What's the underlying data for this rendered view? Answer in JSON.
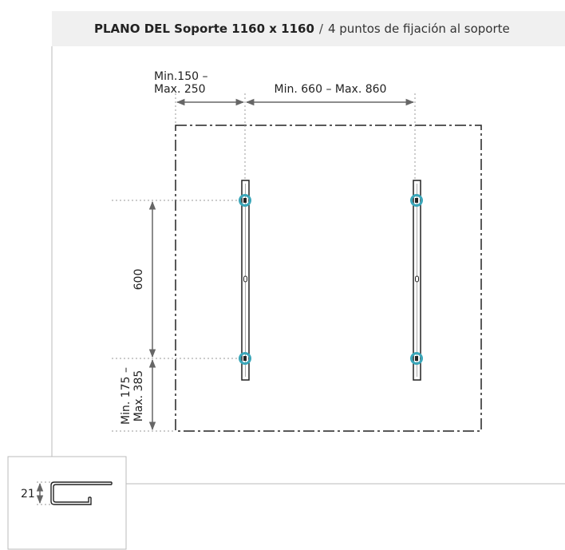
{
  "header": {
    "title_bold": "PLANO DEL Soporte 1160 x 1160",
    "separator": "/",
    "title_sub": "4 puntos de fijación al soporte"
  },
  "dimensions": {
    "left_margin_line1": "Min.150 –",
    "left_margin_line2": "Max. 250",
    "rail_spacing": "Min. 660 – Max. 860",
    "vertical_spacing": "600",
    "bottom_margin_line1": "Min. 175 –",
    "bottom_margin_line2": "Max. 385",
    "profile_height": "21"
  },
  "colors": {
    "fixing_point": "#3aa6b9",
    "dimension_arrow": "#666666",
    "outline": "#222222",
    "header_bg": "#f0f0f0"
  }
}
